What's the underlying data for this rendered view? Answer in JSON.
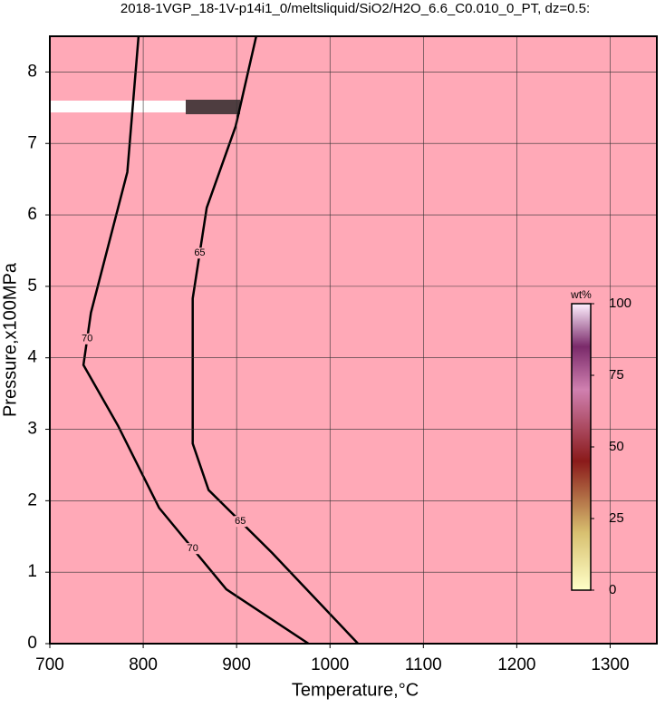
{
  "chart_data": {
    "type": "contour",
    "title": "2018-1VGP_18-1V-p14i1_0/meltsliquid/SiO2/H2O_6.6_C0.010_0_PT, dz=0.5:",
    "x_label": "Temperature,°C",
    "y_label": "Pressure,x100MPa",
    "xlim": [
      700,
      1350
    ],
    "xticks": [
      700,
      800,
      900,
      1000,
      1100,
      1200,
      1300
    ],
    "ylim": [
      0,
      8.5
    ],
    "yticks": [
      0,
      1,
      2,
      3,
      4,
      5,
      6,
      7,
      8
    ],
    "grid": true,
    "fill_color": "#ffa9b7",
    "contours": [
      {
        "level": 70,
        "color": "#000000",
        "x": [
          795,
          783,
          744,
          736,
          773,
          817,
          889,
          977
        ],
        "y": [
          8.5,
          6.6,
          4.63,
          3.9,
          3.05,
          1.9,
          0.76,
          0
        ]
      },
      {
        "level": 65,
        "color": "#000000",
        "x": [
          921,
          899,
          868,
          853,
          853,
          870,
          938,
          1030
        ],
        "y": [
          8.5,
          7.24,
          6.1,
          4.83,
          2.8,
          2.15,
          1.27,
          0
        ]
      }
    ],
    "colorbar": {
      "label": "wt%",
      "lim": [
        0,
        100
      ],
      "ticks": [
        0,
        25,
        50,
        75,
        100
      ]
    }
  }
}
